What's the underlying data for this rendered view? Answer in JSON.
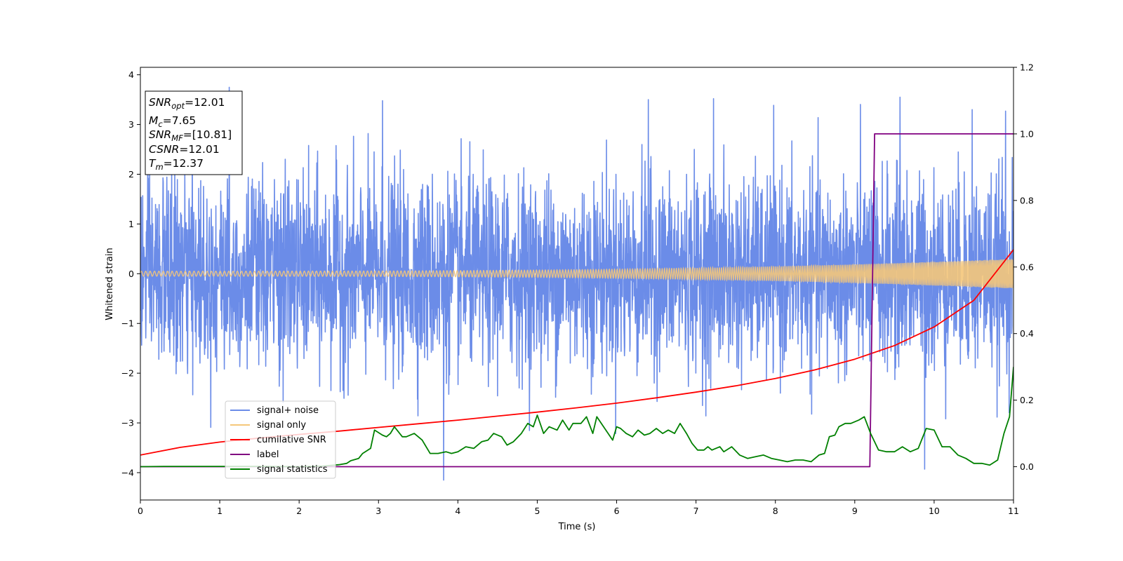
{
  "chart_data": {
    "type": "line",
    "title": "",
    "xlabel": "Time (s)",
    "ylabel": "Whitened strain",
    "y2label": "",
    "xlim": [
      0,
      11
    ],
    "ylim": [
      -4.55,
      4.15
    ],
    "y2lim": [
      -0.1,
      1.2
    ],
    "xticks": [
      0,
      1,
      2,
      3,
      4,
      5,
      6,
      7,
      8,
      9,
      10,
      11
    ],
    "yticks": [
      4,
      3,
      2,
      1,
      0,
      -1,
      -2,
      -3,
      -4
    ],
    "yticklabels": [
      "4",
      "3",
      "2",
      "1",
      "0",
      "−1",
      "−2",
      "−3",
      "−4"
    ],
    "y2ticks": [
      1.2,
      1.0,
      0.8,
      0.6,
      0.4,
      0.2,
      0.0
    ],
    "y2ticklabels": [
      "1.2",
      "1.0",
      "0.8",
      "0.6",
      "0.4",
      "0.2",
      "0.0"
    ],
    "grid": false,
    "legend_position": "lower-left",
    "info_box": {
      "snr_opt_base": "SNR",
      "snr_opt_sub": "opt",
      "snr_opt_value": "=12.01",
      "mc_base": "M",
      "mc_sub": "c",
      "mc_value": "=7.65",
      "snr_mf_base": "SNR",
      "snr_mf_sub": "MF",
      "snr_mf_value": "=[10.81]",
      "csnr_base": "CSNR",
      "csnr_value": "=12.01",
      "tm_base": "T",
      "tm_sub": "m",
      "tm_value": "=12.37"
    },
    "series": [
      {
        "name": "signal+ noise",
        "color": "#6b8ce8",
        "axis": "left",
        "kind": "noise",
        "std": 0.95,
        "ymin": -4.15,
        "ymax": 3.75,
        "peaks": [
          [
            1.12,
            3.75
          ],
          [
            9.57,
            3.55
          ],
          [
            6.4,
            3.5
          ],
          [
            7.22,
            3.52
          ],
          [
            3.05,
            3.48
          ],
          [
            10.48,
            3.3
          ],
          [
            10.9,
            3.27
          ],
          [
            3.82,
            -4.15
          ],
          [
            9.88,
            -3.93
          ]
        ]
      },
      {
        "name": "signal only",
        "color": "#f5c77a",
        "axis": "left",
        "kind": "chirp",
        "amp_start": 0.05,
        "amp_end": 0.3
      },
      {
        "name": "cumilative SNR",
        "color": "#ff0000",
        "axis": "right",
        "x": [
          0,
          0.5,
          1,
          1.5,
          2,
          2.5,
          3,
          3.5,
          4,
          4.5,
          5,
          5.5,
          6,
          6.5,
          7,
          7.5,
          8,
          8.5,
          9,
          9.5,
          10,
          10.5,
          11
        ],
        "y": [
          0.035,
          0.058,
          0.074,
          0.086,
          0.097,
          0.107,
          0.118,
          0.129,
          0.14,
          0.152,
          0.164,
          0.177,
          0.191,
          0.207,
          0.224,
          0.243,
          0.265,
          0.291,
          0.323,
          0.364,
          0.42,
          0.5,
          0.652
        ]
      },
      {
        "name": "label",
        "color": "#800080",
        "axis": "right",
        "x": [
          0,
          9.19,
          9.25,
          11
        ],
        "y": [
          0.0,
          0.0,
          1.0,
          1.0
        ]
      },
      {
        "name": "signal statistics",
        "color": "#008000",
        "axis": "right",
        "x": [
          0,
          0.3,
          1,
          1.5,
          2,
          2.3,
          2.5,
          2.6,
          2.65,
          2.75,
          2.8,
          2.9,
          2.95,
          3.05,
          3.1,
          3.15,
          3.2,
          3.3,
          3.35,
          3.45,
          3.55,
          3.65,
          3.75,
          3.85,
          3.92,
          4.0,
          4.1,
          4.2,
          4.3,
          4.38,
          4.45,
          4.55,
          4.62,
          4.7,
          4.8,
          4.88,
          4.95,
          5.0,
          5.08,
          5.15,
          5.25,
          5.32,
          5.4,
          5.45,
          5.55,
          5.62,
          5.7,
          5.75,
          5.85,
          5.95,
          6.0,
          6.05,
          6.12,
          6.2,
          6.27,
          6.35,
          6.42,
          6.5,
          6.58,
          6.65,
          6.73,
          6.8,
          6.88,
          6.95,
          7.02,
          7.1,
          7.15,
          7.2,
          7.25,
          7.3,
          7.35,
          7.45,
          7.55,
          7.65,
          7.75,
          7.85,
          7.95,
          8.05,
          8.15,
          8.25,
          8.35,
          8.45,
          8.55,
          8.62,
          8.68,
          8.75,
          8.8,
          8.88,
          8.95,
          9.05,
          9.12,
          9.2,
          9.3,
          9.4,
          9.5,
          9.6,
          9.7,
          9.75,
          9.8,
          9.9,
          10.0,
          10.1,
          10.2,
          10.3,
          10.4,
          10.5,
          10.6,
          10.7,
          10.8,
          10.88,
          10.95,
          11.0
        ],
        "y": [
          0.0,
          0.001,
          0.001,
          0.001,
          0.0,
          0.002,
          0.006,
          0.01,
          0.018,
          0.025,
          0.04,
          0.055,
          0.11,
          0.095,
          0.09,
          0.1,
          0.12,
          0.09,
          0.09,
          0.1,
          0.08,
          0.04,
          0.04,
          0.045,
          0.04,
          0.045,
          0.06,
          0.055,
          0.075,
          0.08,
          0.1,
          0.09,
          0.065,
          0.075,
          0.1,
          0.13,
          0.12,
          0.155,
          0.1,
          0.12,
          0.11,
          0.14,
          0.11,
          0.13,
          0.13,
          0.15,
          0.1,
          0.15,
          0.115,
          0.08,
          0.12,
          0.115,
          0.1,
          0.09,
          0.11,
          0.095,
          0.1,
          0.115,
          0.1,
          0.11,
          0.1,
          0.13,
          0.1,
          0.07,
          0.05,
          0.05,
          0.06,
          0.05,
          0.055,
          0.06,
          0.045,
          0.06,
          0.035,
          0.025,
          0.03,
          0.035,
          0.025,
          0.02,
          0.015,
          0.02,
          0.02,
          0.015,
          0.035,
          0.04,
          0.09,
          0.095,
          0.12,
          0.13,
          0.13,
          0.14,
          0.15,
          0.1,
          0.05,
          0.045,
          0.045,
          0.06,
          0.045,
          0.05,
          0.055,
          0.115,
          0.11,
          0.06,
          0.06,
          0.035,
          0.025,
          0.01,
          0.01,
          0.005,
          0.02,
          0.1,
          0.15,
          0.3
        ]
      }
    ]
  }
}
